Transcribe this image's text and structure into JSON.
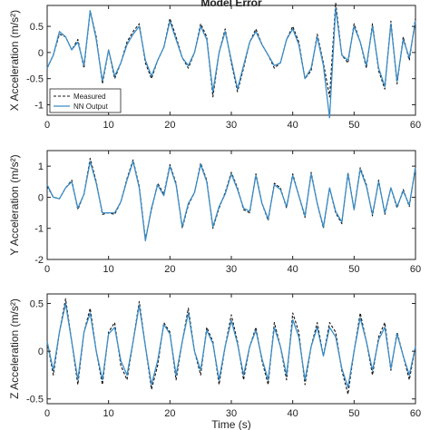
{
  "colors": {
    "measured": "#111111",
    "nn_output": "#3b8cc4",
    "axes": "#222222",
    "background": "#ffffff"
  },
  "chart_data": [
    {
      "type": "line",
      "title": "Model Error",
      "xlabel": "",
      "ylabel": "X Acceleration (m/s²)",
      "xlim": [
        0,
        60
      ],
      "ylim": [
        -1.2,
        0.9
      ],
      "xticks": [
        "0",
        "10",
        "20",
        "30",
        "40",
        "50",
        "60"
      ],
      "yticks": [
        "-1",
        "-0.5",
        "0",
        "0.5"
      ],
      "ytick_values": [
        -1,
        -0.5,
        0,
        0.5
      ],
      "legend": {
        "placement": "bottom-left",
        "entries": [
          "Measured",
          "NN Output"
        ]
      },
      "x": [
        0,
        1,
        2,
        3,
        4,
        5,
        6,
        7,
        8,
        9,
        10,
        11,
        12,
        13,
        14,
        15,
        16,
        17,
        18,
        19,
        20,
        21,
        22,
        23,
        24,
        25,
        26,
        27,
        28,
        29,
        30,
        31,
        32,
        33,
        34,
        35,
        36,
        37,
        38,
        39,
        40,
        41,
        42,
        43,
        44,
        45,
        46,
        47,
        48,
        49,
        50,
        51,
        52,
        53,
        54,
        55,
        56,
        57,
        58,
        59,
        60
      ],
      "series": [
        {
          "name": "Measured",
          "style": "dashed",
          "values": [
            -0.3,
            -0.05,
            0.35,
            0.3,
            0.05,
            0.25,
            -0.3,
            0.8,
            0.3,
            -0.6,
            0.05,
            -0.5,
            -0.2,
            0.2,
            0.4,
            0.55,
            -0.2,
            -0.5,
            -0.15,
            0.1,
            0.65,
            0.3,
            -0.1,
            -0.3,
            0.0,
            0.55,
            0.3,
            -0.85,
            0.0,
            0.45,
            -0.2,
            -0.75,
            -0.3,
            0.2,
            0.45,
            0.15,
            -0.05,
            -0.3,
            -0.2,
            0.25,
            0.5,
            0.2,
            -0.5,
            -0.35,
            0.35,
            -0.2,
            -0.85,
            0.95,
            -0.05,
            -0.2,
            0.55,
            0.2,
            -0.3,
            0.55,
            -0.35,
            -0.7,
            0.6,
            -0.6,
            0.3,
            -0.15,
            0.65
          ]
        },
        {
          "name": "NN Output",
          "style": "solid",
          "values": [
            -0.3,
            -0.05,
            0.4,
            0.3,
            0.05,
            0.2,
            -0.25,
            0.8,
            0.25,
            -0.55,
            0.05,
            -0.45,
            -0.2,
            0.15,
            0.35,
            0.5,
            -0.15,
            -0.45,
            -0.15,
            0.1,
            0.6,
            0.25,
            -0.1,
            -0.25,
            0.0,
            0.5,
            0.25,
            -0.75,
            0.0,
            0.4,
            -0.15,
            -0.7,
            -0.25,
            0.2,
            0.4,
            0.15,
            -0.05,
            -0.25,
            -0.2,
            0.25,
            0.45,
            0.15,
            -0.5,
            -0.3,
            0.3,
            -0.25,
            -1.25,
            0.85,
            -0.05,
            -0.15,
            0.5,
            0.2,
            -0.25,
            0.5,
            -0.3,
            -0.65,
            0.55,
            -0.55,
            0.25,
            -0.1,
            0.6
          ]
        }
      ]
    },
    {
      "type": "line",
      "title": "",
      "xlabel": "",
      "ylabel": "Y Acceleration (m/s²)",
      "xlim": [
        0,
        60
      ],
      "ylim": [
        -2,
        1.5
      ],
      "xticks": [
        "0",
        "10",
        "20",
        "30",
        "40",
        "50",
        "60"
      ],
      "yticks": [
        "-2",
        "-1",
        "0",
        "1"
      ],
      "ytick_values": [
        -2,
        -1,
        0,
        1
      ],
      "x": [
        0,
        1,
        2,
        3,
        4,
        5,
        6,
        7,
        8,
        9,
        10,
        11,
        12,
        13,
        14,
        15,
        16,
        17,
        18,
        19,
        20,
        21,
        22,
        23,
        24,
        25,
        26,
        27,
        28,
        29,
        30,
        31,
        32,
        33,
        34,
        35,
        36,
        37,
        38,
        39,
        40,
        41,
        42,
        43,
        44,
        45,
        46,
        47,
        48,
        49,
        50,
        51,
        52,
        53,
        54,
        55,
        56,
        57,
        58,
        59,
        60
      ],
      "series": [
        {
          "name": "Measured",
          "style": "dashed",
          "values": [
            0.35,
            0.0,
            -0.05,
            0.3,
            0.55,
            -0.4,
            0.1,
            1.25,
            0.5,
            -0.55,
            -0.5,
            -0.55,
            -0.15,
            0.6,
            1.2,
            0.35,
            -1.35,
            -0.4,
            0.45,
            0.1,
            1.05,
            0.45,
            -1.0,
            -0.25,
            0.15,
            1.1,
            0.55,
            -1.0,
            -0.35,
            0.15,
            0.8,
            0.3,
            -0.4,
            -0.5,
            0.75,
            -0.2,
            -0.75,
            0.45,
            0.3,
            -0.35,
            0.75,
            0.05,
            -0.65,
            0.8,
            -0.2,
            -1.0,
            0.3,
            -0.5,
            -0.85,
            0.8,
            -0.4,
            0.95,
            0.4,
            -0.6,
            0.55,
            -0.55,
            0.3,
            -0.35,
            0.25,
            -0.3,
            1.0
          ]
        },
        {
          "name": "NN Output",
          "style": "solid",
          "values": [
            0.4,
            0.0,
            -0.05,
            0.3,
            0.5,
            -0.35,
            0.1,
            1.15,
            0.45,
            -0.5,
            -0.5,
            -0.5,
            -0.15,
            0.55,
            1.15,
            0.3,
            -1.4,
            -0.35,
            0.4,
            0.05,
            1.0,
            0.4,
            -0.95,
            -0.2,
            0.15,
            1.05,
            0.5,
            -0.95,
            -0.3,
            0.1,
            0.75,
            0.25,
            -0.35,
            -0.45,
            0.7,
            -0.2,
            -0.7,
            0.4,
            0.25,
            -0.3,
            0.7,
            0.05,
            -0.6,
            0.75,
            -0.2,
            -0.95,
            0.3,
            -0.45,
            -0.8,
            0.75,
            -0.4,
            0.9,
            0.35,
            -0.55,
            0.5,
            -0.5,
            0.3,
            -0.3,
            0.2,
            -0.25,
            0.95
          ]
        }
      ]
    },
    {
      "type": "line",
      "title": "",
      "xlabel": "Time (s)",
      "ylabel": "Z Acceleration (m/s²)",
      "xlim": [
        0,
        60
      ],
      "ylim": [
        -0.55,
        0.6
      ],
      "xticks": [
        "0",
        "10",
        "20",
        "30",
        "40",
        "50",
        "60"
      ],
      "yticks": [
        "-0.5",
        "0",
        "0.5"
      ],
      "ytick_values": [
        -0.5,
        0,
        0.5
      ],
      "x": [
        0,
        1,
        2,
        3,
        4,
        5,
        6,
        7,
        8,
        9,
        10,
        11,
        12,
        13,
        14,
        15,
        16,
        17,
        18,
        19,
        20,
        21,
        22,
        23,
        24,
        25,
        26,
        27,
        28,
        29,
        30,
        31,
        32,
        33,
        34,
        35,
        36,
        37,
        38,
        39,
        40,
        41,
        42,
        43,
        44,
        45,
        46,
        47,
        48,
        49,
        50,
        51,
        52,
        53,
        54,
        55,
        56,
        57,
        58,
        59,
        60
      ],
      "series": [
        {
          "name": "Measured",
          "style": "dashed",
          "values": [
            0.1,
            -0.25,
            0.2,
            0.55,
            0.1,
            -0.35,
            0.2,
            0.45,
            0.0,
            -0.35,
            0.2,
            0.3,
            -0.15,
            -0.3,
            0.1,
            0.52,
            0.05,
            -0.4,
            -0.15,
            0.3,
            0.2,
            -0.3,
            0.1,
            0.45,
            0.0,
            -0.25,
            0.25,
            0.1,
            -0.35,
            0.05,
            0.38,
            0.1,
            -0.3,
            0.05,
            0.25,
            -0.1,
            -0.35,
            0.3,
            0.05,
            -0.3,
            0.4,
            0.2,
            -0.35,
            0.05,
            0.3,
            -0.05,
            0.3,
            0.2,
            -0.2,
            -0.45,
            0.0,
            0.4,
            0.1,
            -0.25,
            0.15,
            0.3,
            -0.2,
            0.2,
            -0.05,
            -0.3,
            0.05
          ]
        },
        {
          "name": "NN Output",
          "style": "solid",
          "values": [
            0.1,
            -0.2,
            0.2,
            0.5,
            0.1,
            -0.3,
            0.2,
            0.4,
            0.0,
            -0.3,
            0.18,
            0.25,
            -0.1,
            -0.25,
            0.1,
            0.48,
            0.05,
            -0.35,
            -0.1,
            0.28,
            0.18,
            -0.25,
            0.1,
            0.4,
            0.0,
            -0.2,
            0.22,
            0.08,
            -0.3,
            0.05,
            0.32,
            0.08,
            -0.25,
            0.05,
            0.22,
            -0.08,
            -0.3,
            0.25,
            0.05,
            -0.25,
            0.33,
            0.15,
            -0.3,
            0.05,
            0.25,
            -0.05,
            0.25,
            0.15,
            -0.18,
            -0.38,
            0.0,
            0.35,
            0.1,
            -0.2,
            0.12,
            0.25,
            -0.18,
            0.18,
            -0.05,
            -0.25,
            0.05
          ]
        }
      ]
    }
  ]
}
